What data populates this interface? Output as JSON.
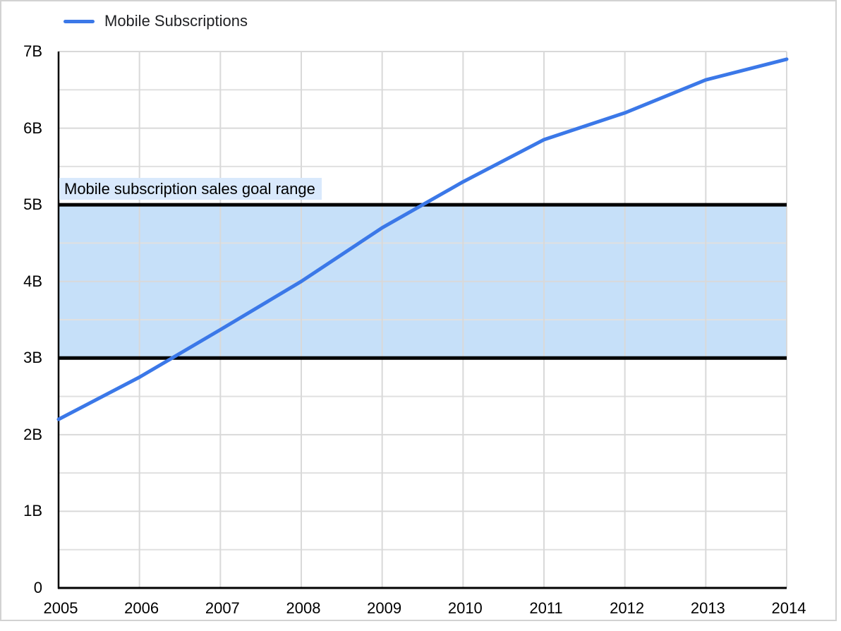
{
  "chart_data": {
    "type": "line",
    "title": "",
    "x": [
      2005,
      2006,
      2007,
      2008,
      2009,
      2010,
      2011,
      2012,
      2013,
      2014
    ],
    "xtick_labels": [
      "2005",
      "2006",
      "2007",
      "2008",
      "2009",
      "2010",
      "2011",
      "2012",
      "2013",
      "2014"
    ],
    "series": [
      {
        "name": "Mobile Subscriptions",
        "values": [
          2.2,
          2.75,
          3.37,
          4.0,
          4.7,
          5.3,
          5.85,
          6.2,
          6.63,
          6.9
        ]
      }
    ],
    "ylim": [
      0,
      7
    ],
    "yticks": {
      "values": [
        0,
        1,
        2,
        3,
        4,
        5,
        6,
        7
      ],
      "labels": [
        "0",
        "1B",
        "2B",
        "3B",
        "4B",
        "5B",
        "6B",
        "7B"
      ]
    },
    "y_minor_ticks": [
      0.5,
      1.5,
      2.5,
      3.5,
      4.5,
      5.5,
      6.5
    ],
    "grid": true,
    "legend_position": "top-left",
    "goal_band": {
      "from": 3,
      "to": 5,
      "label": "Mobile subscription sales goal range"
    }
  },
  "colors": {
    "line": "#3b78e8",
    "band_fill": "#c6e0f9",
    "band_label_bg": "#d9e9fc",
    "band_border": "#000000",
    "gridline_major": "#d9d9d9",
    "gridline_minor": "#e0e0e0",
    "axis": "#000000",
    "text": "#000000",
    "frame_border": "#d2d2d2"
  }
}
